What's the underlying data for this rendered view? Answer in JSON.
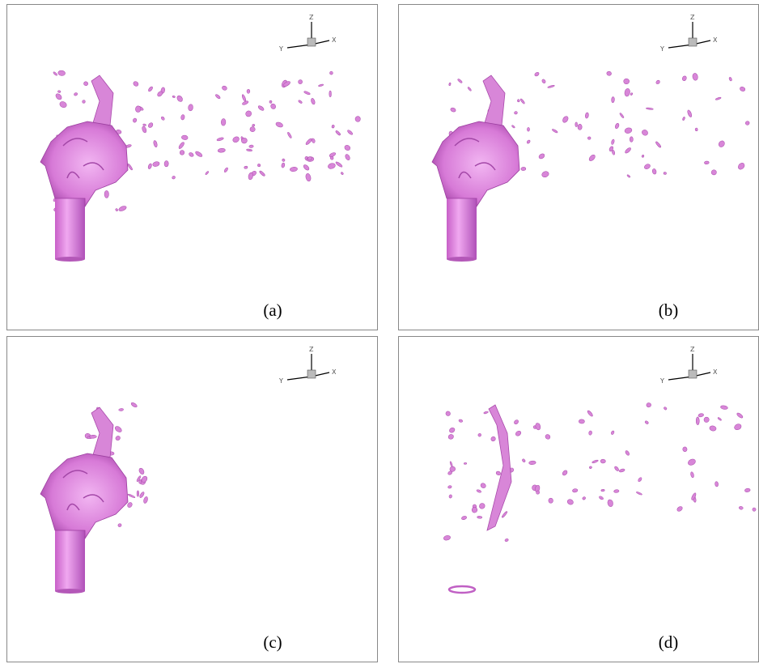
{
  "panels": [
    {
      "label": "(a)"
    },
    {
      "label": "(b)"
    },
    {
      "label": "(c)"
    },
    {
      "label": "(d)"
    }
  ],
  "axis_labels": {
    "z": "Z",
    "y": "Y",
    "x": "X"
  }
}
